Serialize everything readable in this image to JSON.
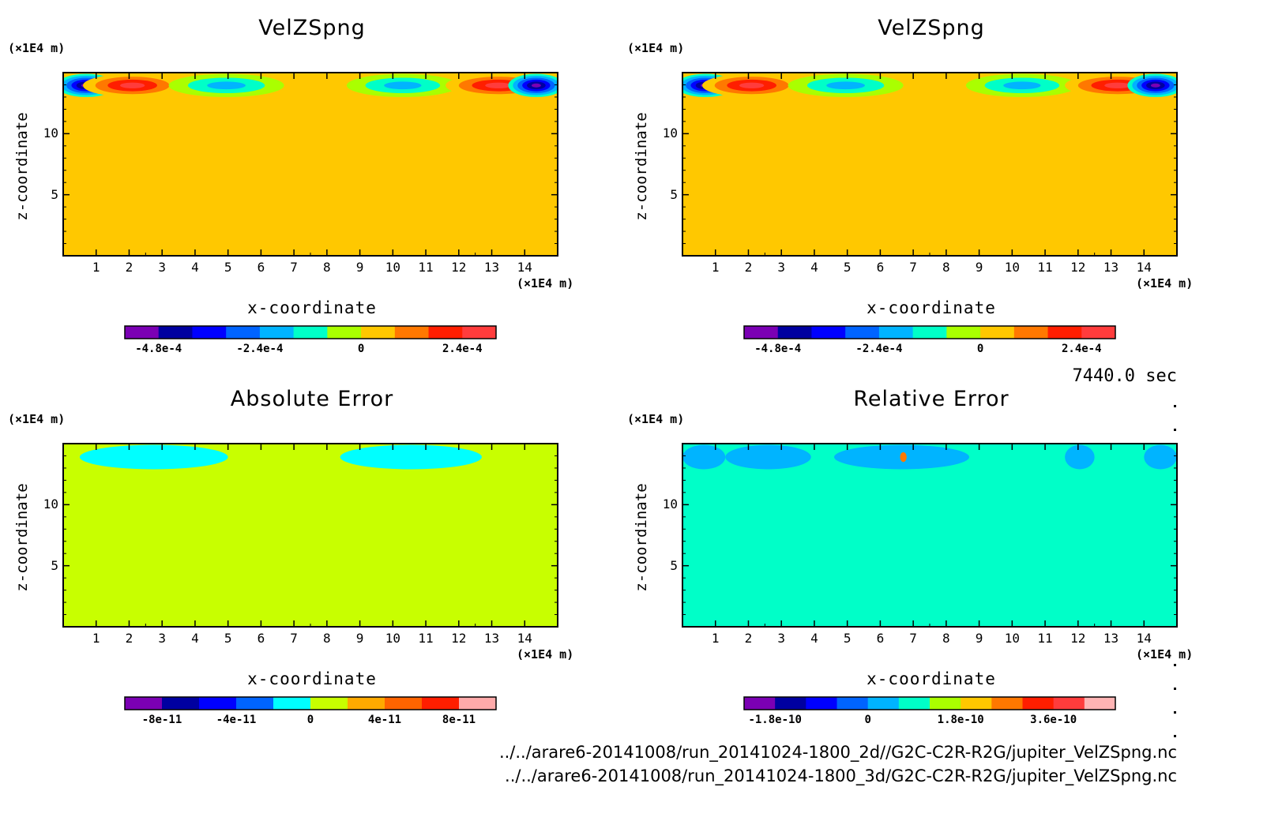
{
  "chart_data": [
    {
      "type": "heatmap",
      "title": "VelZSpng",
      "xlabel": "x-coordinate",
      "ylabel": "z-coordinate",
      "x_unit": "(×1E4 m)",
      "z_unit": "(×1E4 m)",
      "x_ticks": [
        "1",
        "2",
        "3",
        "4",
        "5",
        "6",
        "7",
        "8",
        "9",
        "10",
        "11",
        "12",
        "13",
        "14"
      ],
      "y_ticks": [
        "5",
        "10"
      ],
      "xlim": [
        0,
        15
      ],
      "ylim": [
        0,
        15
      ],
      "colorbar": {
        "colors": [
          "#7b00b4",
          "#0000a0",
          "#0000ff",
          "#0064ff",
          "#00b4ff",
          "#00ffc8",
          "#aaff00",
          "#ffc800",
          "#ff7800",
          "#ff1e00",
          "#ff3c3c"
        ],
        "labels": [
          "-4.8e-4",
          "-2.4e-4",
          "0",
          "2.4e-4"
        ],
        "label_positions": [
          1.0,
          4.0,
          7.0,
          10.0
        ]
      },
      "field": {
        "background": "#ffc800",
        "features": [
          {
            "x": [
              -0.2,
              1.6
            ],
            "z": [
              13.0,
              14.9
            ],
            "colors": [
              "#00ffc8",
              "#00b4ff",
              "#0064ff",
              "#0000ff",
              "#0000a0",
              "#7b00b4"
            ]
          },
          {
            "x": [
              0.6,
              3.6
            ],
            "z": [
              13.0,
              14.9
            ],
            "colors": [
              "#ffc800",
              "#ff7800",
              "#ff1e00",
              "#ff3c3c"
            ]
          },
          {
            "x": [
              3.2,
              6.7
            ],
            "z": [
              13.0,
              14.9
            ],
            "colors": [
              "#aaff00",
              "#00ffc8",
              "#00b4ff"
            ]
          },
          {
            "x": [
              8.6,
              12.0
            ],
            "z": [
              13.0,
              14.9
            ],
            "colors": [
              "#aaff00",
              "#00ffc8",
              "#00b4ff"
            ]
          },
          {
            "x": [
              11.6,
              14.8
            ],
            "z": [
              13.0,
              14.9
            ],
            "colors": [
              "#ffc800",
              "#ff7800",
              "#ff1e00",
              "#ff3c3c"
            ]
          },
          {
            "x": [
              13.5,
              15.2
            ],
            "z": [
              13.0,
              14.9
            ],
            "colors": [
              "#00ffc8",
              "#00b4ff",
              "#0064ff",
              "#0000ff",
              "#0000a0",
              "#7b00b4"
            ]
          }
        ]
      }
    },
    {
      "type": "heatmap",
      "title": "VelZSpng",
      "xlabel": "x-coordinate",
      "ylabel": "z-coordinate",
      "x_unit": "(×1E4 m)",
      "z_unit": "(×1E4 m)",
      "x_ticks": [
        "1",
        "2",
        "3",
        "4",
        "5",
        "6",
        "7",
        "8",
        "9",
        "10",
        "11",
        "12",
        "13",
        "14"
      ],
      "y_ticks": [
        "5",
        "10"
      ],
      "xlim": [
        0,
        15
      ],
      "ylim": [
        0,
        15
      ],
      "colorbar": {
        "colors": [
          "#7b00b4",
          "#0000a0",
          "#0000ff",
          "#0064ff",
          "#00b4ff",
          "#00ffc8",
          "#aaff00",
          "#ffc800",
          "#ff7800",
          "#ff1e00",
          "#ff3c3c"
        ],
        "labels": [
          "-4.8e-4",
          "-2.4e-4",
          "0",
          "2.4e-4"
        ],
        "label_positions": [
          1.0,
          4.0,
          7.0,
          10.0
        ]
      },
      "field": {
        "background": "#ffc800",
        "features": [
          {
            "x": [
              -0.2,
              1.6
            ],
            "z": [
              13.0,
              14.9
            ],
            "colors": [
              "#00ffc8",
              "#00b4ff",
              "#0064ff",
              "#0000ff",
              "#0000a0",
              "#7b00b4"
            ]
          },
          {
            "x": [
              0.6,
              3.6
            ],
            "z": [
              13.0,
              14.9
            ],
            "colors": [
              "#ffc800",
              "#ff7800",
              "#ff1e00",
              "#ff3c3c"
            ]
          },
          {
            "x": [
              3.2,
              6.7
            ],
            "z": [
              13.0,
              14.9
            ],
            "colors": [
              "#aaff00",
              "#00ffc8",
              "#00b4ff"
            ]
          },
          {
            "x": [
              8.6,
              12.0
            ],
            "z": [
              13.0,
              14.9
            ],
            "colors": [
              "#aaff00",
              "#00ffc8",
              "#00b4ff"
            ]
          },
          {
            "x": [
              11.6,
              14.8
            ],
            "z": [
              13.0,
              14.9
            ],
            "colors": [
              "#ffc800",
              "#ff7800",
              "#ff1e00",
              "#ff3c3c"
            ]
          },
          {
            "x": [
              13.5,
              15.2
            ],
            "z": [
              13.0,
              14.9
            ],
            "colors": [
              "#00ffc8",
              "#00b4ff",
              "#0064ff",
              "#0000ff",
              "#0000a0",
              "#7b00b4"
            ]
          }
        ]
      }
    },
    {
      "type": "heatmap",
      "title": "Absolute Error",
      "xlabel": "x-coordinate",
      "ylabel": "z-coordinate",
      "x_unit": "(×1E4 m)",
      "z_unit": "(×1E4 m)",
      "x_ticks": [
        "1",
        "2",
        "3",
        "4",
        "5",
        "6",
        "7",
        "8",
        "9",
        "10",
        "11",
        "12",
        "13",
        "14"
      ],
      "y_ticks": [
        "5",
        "10"
      ],
      "xlim": [
        0,
        15
      ],
      "ylim": [
        0,
        15
      ],
      "colorbar": {
        "colors": [
          "#7b00b4",
          "#0000a0",
          "#0000ff",
          "#0064ff",
          "#00ffff",
          "#c8ff00",
          "#ffaa00",
          "#ff6400",
          "#ff1e00",
          "#ffaaaa"
        ],
        "labels": [
          "-8e-11",
          "-4e-11",
          "0",
          "4e-11",
          "8e-11"
        ],
        "label_positions": [
          1.0,
          3.0,
          5.0,
          7.0,
          9.0
        ]
      },
      "field": {
        "background": "#c8ff00",
        "features": [
          {
            "x": [
              0.5,
              5.0
            ],
            "z": [
              12.9,
              14.9
            ],
            "colors": [
              "#00ffff"
            ]
          },
          {
            "x": [
              8.4,
              12.7
            ],
            "z": [
              12.9,
              14.9
            ],
            "colors": [
              "#00ffff"
            ]
          }
        ]
      }
    },
    {
      "type": "heatmap",
      "title": "Relative Error",
      "xlabel": "x-coordinate",
      "ylabel": "z-coordinate",
      "x_unit": "(×1E4 m)",
      "z_unit": "(×1E4 m)",
      "x_ticks": [
        "1",
        "2",
        "3",
        "4",
        "5",
        "6",
        "7",
        "8",
        "9",
        "10",
        "11",
        "12",
        "13",
        "14"
      ],
      "y_ticks": [
        "5",
        "10"
      ],
      "xlim": [
        0,
        15
      ],
      "ylim": [
        0,
        15
      ],
      "colorbar": {
        "colors": [
          "#7b00b4",
          "#0000a0",
          "#0000ff",
          "#0064ff",
          "#00b4ff",
          "#00ffc8",
          "#aaff00",
          "#ffc800",
          "#ff7800",
          "#ff1e00",
          "#ff3c3c",
          "#ffb4b4"
        ],
        "labels": [
          "-1.8e-10",
          "0",
          "1.8e-10",
          "3.6e-10"
        ],
        "label_positions": [
          1.0,
          4.0,
          7.0,
          10.0
        ]
      },
      "field": {
        "background": "#00ffc8",
        "features": [
          {
            "x": [
              0.0,
              1.3
            ],
            "z": [
              12.9,
              14.9
            ],
            "colors": [
              "#00b4ff"
            ]
          },
          {
            "x": [
              1.3,
              3.9
            ],
            "z": [
              12.9,
              14.9
            ],
            "colors": [
              "#00b4ff"
            ]
          },
          {
            "x": [
              4.6,
              8.7
            ],
            "z": [
              12.9,
              14.9
            ],
            "colors": [
              "#00b4ff"
            ]
          },
          {
            "x": [
              11.6,
              12.5
            ],
            "z": [
              12.9,
              14.9
            ],
            "colors": [
              "#00b4ff"
            ]
          },
          {
            "x": [
              14.0,
              15.0
            ],
            "z": [
              12.9,
              14.9
            ],
            "colors": [
              "#00b4ff"
            ]
          },
          {
            "x": [
              6.6,
              6.8
            ],
            "z": [
              13.5,
              14.3
            ],
            "colors": [
              "#ff7800"
            ]
          }
        ]
      }
    }
  ],
  "annotations": {
    "time": "7440.0 sec",
    "file1": "../../arare6-20141008/run_20141024-1800_2d//G2C-C2R-R2G/jupiter_VelZSpng.nc",
    "file2": "../../arare6-20141008/run_20141024-1800_3d/G2C-C2R-R2G/jupiter_VelZSpng.nc"
  }
}
